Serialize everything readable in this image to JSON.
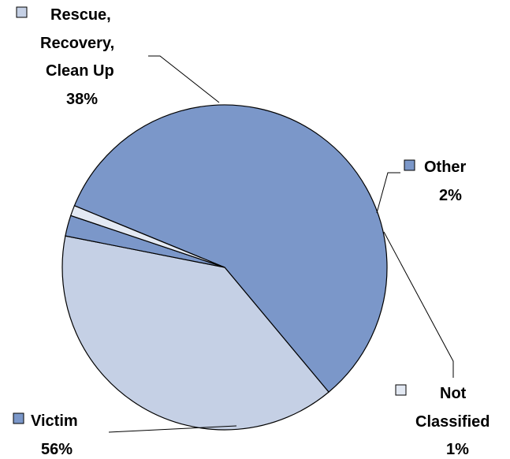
{
  "chart_data": {
    "type": "pie",
    "title": "",
    "colors": {
      "victim": "#7b97c9",
      "rescue": "#c5d0e5",
      "other": "#7b97c9",
      "not_classified": "#e3e9f3",
      "outline": "#000000"
    },
    "slices": [
      {
        "key": "victim",
        "label_lines": [
          "Victim"
        ],
        "percent_label": "56%",
        "value": 56
      },
      {
        "key": "rescue",
        "label_lines": [
          "Rescue,",
          "Recovery,",
          "Clean Up"
        ],
        "percent_label": "38%",
        "value": 38
      },
      {
        "key": "other",
        "label_lines": [
          "Other"
        ],
        "percent_label": "2%",
        "value": 2
      },
      {
        "key": "not_classified",
        "label_lines": [
          "Not",
          "Classified"
        ],
        "percent_label": "1%",
        "value": 1
      }
    ]
  }
}
